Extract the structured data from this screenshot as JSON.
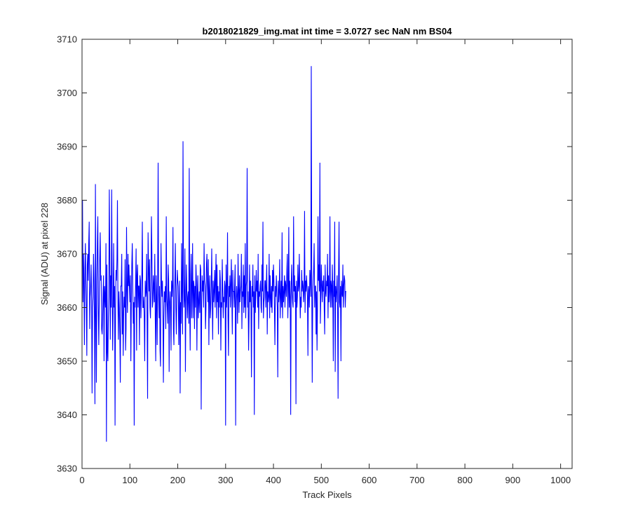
{
  "chart_data": {
    "type": "line",
    "title": "b2018021829_img.mat int time = 3.0727 sec  NaN nm BS04",
    "xlabel": "Track Pixels",
    "ylabel": "Signal (ADU) at pixel 228",
    "xlim": [
      0,
      1024
    ],
    "ylim": [
      3630,
      3710
    ],
    "xticks": [
      0,
      100,
      200,
      300,
      400,
      500,
      600,
      700,
      800,
      900,
      1000
    ],
    "yticks": [
      3630,
      3640,
      3650,
      3660,
      3670,
      3680,
      3690,
      3700,
      3710
    ],
    "xtick_labels": [
      "0",
      "100",
      "200",
      "300",
      "400",
      "500",
      "600",
      "700",
      "800",
      "900",
      "1000"
    ],
    "ytick_labels": [
      "3630",
      "3640",
      "3650",
      "3660",
      "3670",
      "3680",
      "3690",
      "3700",
      "3710"
    ],
    "grid": false,
    "series": [
      {
        "color": "#0000ff",
        "x_start": 1,
        "x_step": 1,
        "values": [
          3680,
          3661,
          3670,
          3665,
          3653,
          3667,
          3672,
          3665,
          3660,
          3651,
          3668,
          3670,
          3665,
          3672,
          3676,
          3656,
          3662,
          3664,
          3668,
          3661,
          3644,
          3660,
          3662,
          3670,
          3665,
          3657,
          3642,
          3683,
          3659,
          3646,
          3665,
          3672,
          3677,
          3660,
          3653,
          3661,
          3669,
          3674,
          3665,
          3666,
          3656,
          3655,
          3658,
          3663,
          3666,
          3650,
          3664,
          3662,
          3660,
          3672,
          3635,
          3668,
          3652,
          3650,
          3658,
          3662,
          3682,
          3670,
          3654,
          3666,
          3660,
          3682,
          3664,
          3652,
          3659,
          3672,
          3660,
          3664,
          3638,
          3660,
          3667,
          3665,
          3669,
          3680,
          3661,
          3654,
          3663,
          3660,
          3655,
          3646,
          3664,
          3664,
          3670,
          3655,
          3663,
          3651,
          3659,
          3662,
          3660,
          3669,
          3652,
          3656,
          3675,
          3663,
          3659,
          3670,
          3664,
          3668,
          3664,
          3661,
          3666,
          3650,
          3660,
          3668,
          3672,
          3664,
          3657,
          3661,
          3638,
          3662,
          3660,
          3665,
          3671,
          3652,
          3666,
          3668,
          3660,
          3664,
          3664,
          3653,
          3666,
          3665,
          3658,
          3662,
          3666,
          3676,
          3660,
          3660,
          3662,
          3658,
          3650,
          3665,
          3662,
          3663,
          3670,
          3657,
          3643,
          3674,
          3668,
          3663,
          3669,
          3660,
          3658,
          3665,
          3677,
          3670,
          3660,
          3661,
          3666,
          3664,
          3661,
          3670,
          3658,
          3650,
          3666,
          3662,
          3653,
          3665,
          3687,
          3663,
          3658,
          3664,
          3652,
          3649,
          3672,
          3665,
          3662,
          3665,
          3660,
          3646,
          3658,
          3663,
          3661,
          3664,
          3656,
          3677,
          3662,
          3660,
          3657,
          3668,
          3665,
          3648,
          3661,
          3663,
          3660,
          3652,
          3665,
          3662,
          3664,
          3675,
          3656,
          3653,
          3663,
          3665,
          3672,
          3660,
          3655,
          3662,
          3667,
          3665,
          3664,
          3653,
          3660,
          3665,
          3644,
          3661,
          3657,
          3672,
          3663,
          3655,
          3691,
          3666,
          3660,
          3662,
          3671,
          3648,
          3661,
          3668,
          3663,
          3658,
          3662,
          3663,
          3657,
          3686,
          3660,
          3652,
          3666,
          3670,
          3658,
          3663,
          3672,
          3658,
          3665,
          3664,
          3656,
          3664,
          3660,
          3668,
          3665,
          3652,
          3663,
          3666,
          3658,
          3661,
          3663,
          3659,
          3668,
          3667,
          3641,
          3661,
          3666,
          3663,
          3665,
          3660,
          3672,
          3665,
          3664,
          3656,
          3660,
          3668,
          3670,
          3664,
          3661,
          3669,
          3653,
          3663,
          3666,
          3658,
          3660,
          3664,
          3671,
          3662,
          3654,
          3665,
          3661,
          3663,
          3667,
          3660,
          3665,
          3670,
          3658,
          3668,
          3661,
          3664,
          3655,
          3663,
          3660,
          3667,
          3665,
          3652,
          3661,
          3660,
          3669,
          3663,
          3658,
          3662,
          3661,
          3665,
          3664,
          3638,
          3668,
          3660,
          3663,
          3674,
          3658,
          3651,
          3664,
          3662,
          3666,
          3660,
          3664,
          3669,
          3662,
          3655,
          3667,
          3663,
          3663,
          3660,
          3665,
          3668,
          3638,
          3661,
          3664,
          3662,
          3657,
          3670,
          3663,
          3659,
          3666,
          3661,
          3663,
          3664,
          3670,
          3656,
          3663,
          3662,
          3668,
          3659,
          3666,
          3660,
          3672,
          3658,
          3664,
          3665,
          3686,
          3660,
          3663,
          3652,
          3658,
          3668,
          3661,
          3665,
          3660,
          3647,
          3664,
          3662,
          3668,
          3660,
          3663,
          3640,
          3666,
          3659,
          3662,
          3667,
          3663,
          3665,
          3660,
          3670,
          3656,
          3663,
          3662,
          3664,
          3665,
          3660,
          3659,
          3668,
          3663,
          3676,
          3658,
          3661,
          3662,
          3665,
          3665,
          3660,
          3664,
          3668,
          3655,
          3663,
          3661,
          3662,
          3670,
          3658,
          3666,
          3662,
          3660,
          3664,
          3659,
          3667,
          3663,
          3668,
          3665,
          3660,
          3653,
          3664,
          3662,
          3666,
          3663,
          3660,
          3647,
          3665,
          3661,
          3663,
          3669,
          3658,
          3662,
          3665,
          3660,
          3674,
          3658,
          3664,
          3661,
          3663,
          3666,
          3660,
          3665,
          3664,
          3662,
          3667,
          3670,
          3658,
          3663,
          3675,
          3660,
          3665,
          3662,
          3640,
          3664,
          3668,
          3663,
          3661,
          3660,
          3677,
          3663,
          3666,
          3661,
          3664,
          3642,
          3665,
          3660,
          3662,
          3668,
          3663,
          3664,
          3670,
          3663,
          3658,
          3662,
          3660,
          3667,
          3663,
          3665,
          3664,
          3661,
          3663,
          3678,
          3659,
          3665,
          3663,
          3666,
          3664,
          3662,
          3651,
          3664,
          3663,
          3660,
          3667,
          3665,
          3662,
          3705,
          3664,
          3646,
          3662,
          3665,
          3667,
          3672,
          3660,
          3664,
          3664,
          3655,
          3663,
          3652,
          3660,
          3677,
          3665,
          3668,
          3663,
          3687,
          3657,
          3662,
          3668,
          3664,
          3661,
          3665,
          3663,
          3666,
          3660,
          3655,
          3668,
          3663,
          3662,
          3665,
          3664,
          3670,
          3658,
          3666,
          3661,
          3663,
          3677,
          3660,
          3665,
          3664,
          3660,
          3668,
          3663,
          3650,
          3665,
          3662,
          3676,
          3648,
          3664,
          3661,
          3663,
          3666,
          3660,
          3643,
          3666,
          3676,
          3661,
          3660,
          3664,
          3650,
          3665,
          3663,
          3662,
          3668,
          3660,
          3664,
          3666,
          3665,
          3660,
          3663,
          3663
        ]
      }
    ]
  }
}
